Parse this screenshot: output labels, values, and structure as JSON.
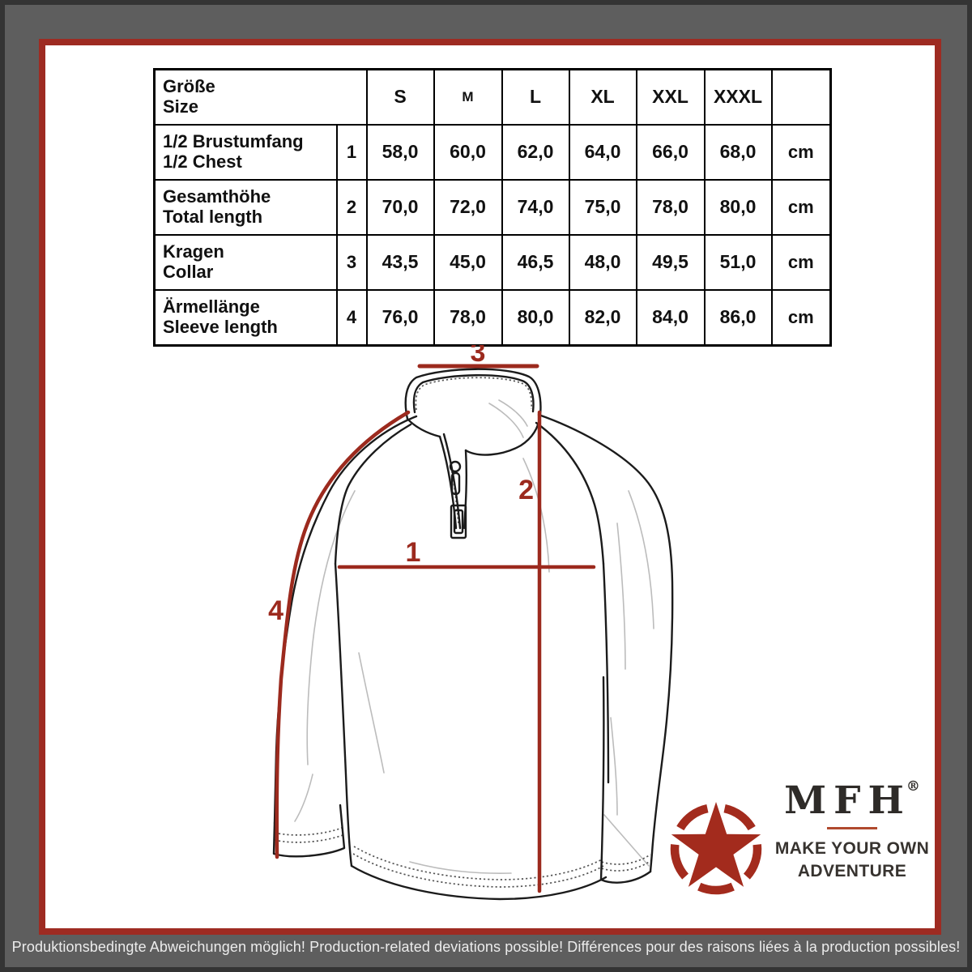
{
  "size_table": {
    "header": {
      "title_de": "Größe",
      "title_en": "Size",
      "sizes": [
        "S",
        "M",
        "L",
        "XL",
        "XXL",
        "XXXL"
      ],
      "unit_col": ""
    },
    "rows": [
      {
        "label_de": "1/2 Brustumfang",
        "label_en": "1/2 Chest",
        "ref": "1",
        "values": [
          "58,0",
          "60,0",
          "62,0",
          "64,0",
          "66,0",
          "68,0"
        ],
        "unit": "cm"
      },
      {
        "label_de": "Gesamthöhe",
        "label_en": "Total length",
        "ref": "2",
        "values": [
          "70,0",
          "72,0",
          "74,0",
          "75,0",
          "78,0",
          "80,0"
        ],
        "unit": "cm"
      },
      {
        "label_de": "Kragen",
        "label_en": "Collar",
        "ref": "3",
        "values": [
          "43,5",
          "45,0",
          "46,5",
          "48,0",
          "49,5",
          "51,0"
        ],
        "unit": "cm"
      },
      {
        "label_de": "Ärmellänge",
        "label_en": "Sleeve length",
        "ref": "4",
        "values": [
          "76,0",
          "78,0",
          "80,0",
          "82,0",
          "84,0",
          "86,0"
        ],
        "unit": "cm"
      }
    ]
  },
  "diagram": {
    "measure_chest": "1",
    "measure_length": "2",
    "measure_collar": "3",
    "measure_sleeve": "4"
  },
  "brand": {
    "name": "MFH",
    "registered_mark": "®",
    "tagline_line1": "MAKE YOUR OWN",
    "tagline_line2": "ADVENTURE"
  },
  "footer": {
    "note": "Produktionsbedingte Abweichungen möglich! Production-related deviations possible! Différences pour des raisons liées à la production possibles!"
  },
  "colors": {
    "frame_red": "#9e2b22",
    "measure_red": "#9c2a1e",
    "star_red": "#a32b1d",
    "background_gray": "#5e5e5e",
    "text_dark": "#2e2b28"
  }
}
